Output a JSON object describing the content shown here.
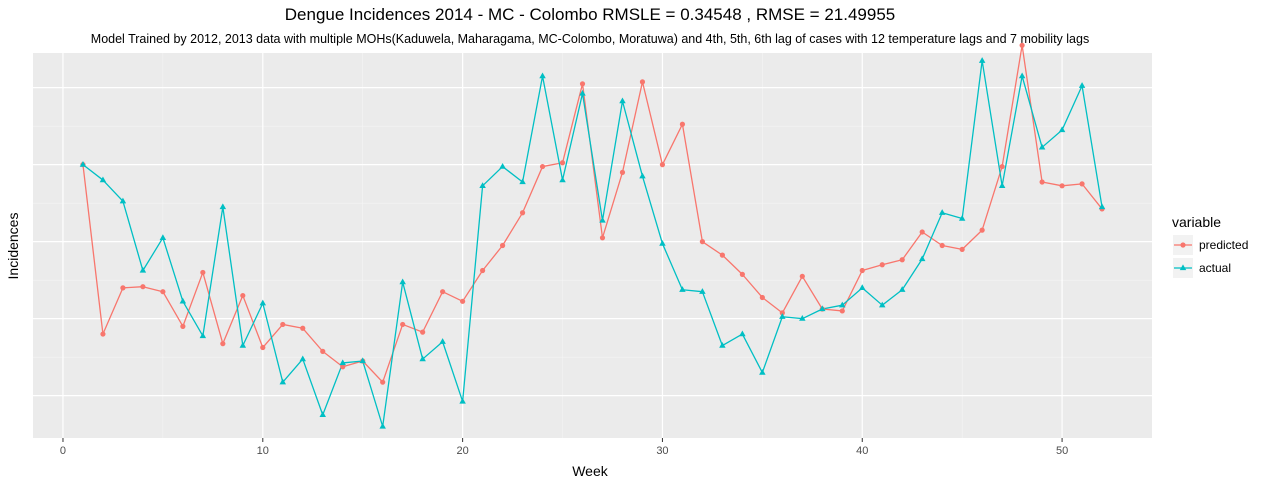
{
  "chart_data": {
    "type": "line",
    "title": "Dengue Incidences 2014 -  MC - Colombo  RMSLE =  0.34548 , RMSE =  21.49955",
    "subtitle": "Model Trained by 2012, 2013 data with multiple MOHs(Kaduwela, Maharagama, MC-Colombo, Moratuwa) and 4th, 5th, 6th lag of cases with 12 temperature lags and 7 mobility lags",
    "xlabel": "Week",
    "ylabel": "Incidences",
    "xlim": [
      -1.5,
      54.5
    ],
    "ylim": [
      0,
      100
    ],
    "x_ticks": [
      0,
      10,
      20,
      30,
      40,
      50
    ],
    "x_tick_labels": [
      "0",
      "10",
      "20",
      "30",
      "40",
      "50"
    ],
    "y_ticks": [
      11,
      31,
      51,
      71,
      91
    ],
    "grid": true,
    "legend": {
      "title": "variable",
      "position": "right"
    },
    "x": [
      1,
      2,
      3,
      4,
      5,
      6,
      7,
      8,
      9,
      10,
      11,
      12,
      13,
      14,
      15,
      16,
      17,
      18,
      19,
      20,
      21,
      22,
      23,
      24,
      25,
      26,
      27,
      28,
      29,
      30,
      31,
      32,
      33,
      34,
      35,
      36,
      37,
      38,
      39,
      40,
      41,
      42,
      43,
      44,
      45,
      46,
      47,
      48,
      49,
      50,
      51,
      52
    ],
    "series": [
      {
        "name": "predicted",
        "color": "#F8766D",
        "marker": "circle",
        "values": [
          71,
          27,
          39,
          39.3,
          38,
          29,
          43,
          24.5,
          37,
          23.5,
          29.5,
          28.5,
          22.5,
          18.5,
          20,
          14.5,
          29.5,
          27.5,
          38,
          35.5,
          43.5,
          50,
          58.5,
          70.5,
          71.5,
          92,
          52,
          69,
          92.5,
          71,
          81.5,
          51,
          47.5,
          42.5,
          36.5,
          32.5,
          42,
          33.5,
          33,
          43.5,
          45,
          46.3,
          53.5,
          50,
          49,
          54,
          70.5,
          102,
          66.5,
          65.5,
          66,
          59.5
        ]
      },
      {
        "name": "actual",
        "color": "#00BFC4",
        "marker": "triangle",
        "values": [
          71,
          67,
          61.5,
          43.5,
          52,
          35.5,
          26.5,
          60,
          24,
          35,
          14.5,
          20.5,
          6,
          19.5,
          20,
          3,
          40.5,
          20.5,
          25,
          9.5,
          65.5,
          70.5,
          66.5,
          94,
          67,
          89.5,
          56.5,
          87.5,
          68,
          50.5,
          38.5,
          38,
          24,
          27,
          17,
          31.5,
          31,
          33.5,
          34.5,
          39,
          34.5,
          38.5,
          46.5,
          58.5,
          57,
          98,
          65.5,
          94,
          75.5,
          80,
          91.5,
          60
        ]
      }
    ]
  }
}
